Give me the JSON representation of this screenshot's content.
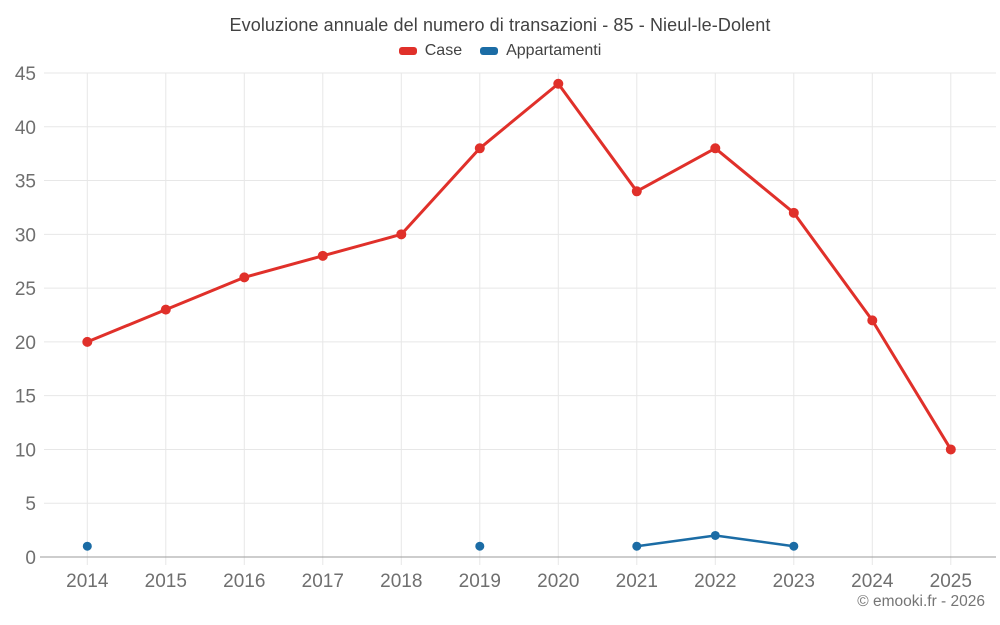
{
  "title": "Evoluzione annuale del numero di transazioni - 85 - Nieul-le-Dolent",
  "footer": {
    "text": "© emooki.fr - 2026"
  },
  "colors": {
    "case_red": "#e0302a",
    "appartamenti_blue": "#1b6ca5",
    "gridline": "#e7e7e7",
    "axis_line": "#9b9b9b",
    "tick_text": "#6f6f6f",
    "title_text": "#424242",
    "footer_text": "#757575",
    "background": "#ffffff"
  },
  "chart_data": {
    "type": "line",
    "title": "Evoluzione annuale del numero di transazioni - 85 - Nieul-le-Dolent",
    "categories": [
      "2014",
      "2015",
      "2016",
      "2017",
      "2018",
      "2019",
      "2020",
      "2021",
      "2022",
      "2023",
      "2024",
      "2025"
    ],
    "series": [
      {
        "name": "Case",
        "color": "#e0302a",
        "values": [
          20,
          23,
          26,
          28,
          30,
          38,
          44,
          34,
          38,
          32,
          22,
          10
        ]
      },
      {
        "name": "Appartamenti",
        "color": "#1b6ca5",
        "values": [
          1,
          null,
          null,
          null,
          null,
          1,
          null,
          1,
          2,
          1,
          null,
          null
        ]
      }
    ],
    "xlabel": "",
    "ylabel": "",
    "ylim": [
      0,
      45
    ],
    "ytick_step": 5,
    "yticks": [
      0,
      5,
      10,
      15,
      20,
      25,
      30,
      35,
      40,
      45
    ],
    "grid": true,
    "legend_position": "top",
    "footer": "© emooki.fr - 2026"
  }
}
